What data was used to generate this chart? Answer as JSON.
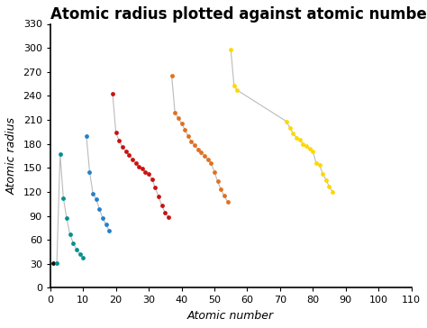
{
  "title": "Atomic radius plotted against atomic number",
  "xlabel": "Atomic number",
  "ylabel": "Atomic radius",
  "xlim": [
    0,
    110
  ],
  "ylim": [
    0,
    330
  ],
  "xticks": [
    0,
    10,
    20,
    30,
    40,
    50,
    60,
    70,
    80,
    90,
    100,
    110
  ],
  "yticks": [
    0,
    30,
    60,
    90,
    120,
    150,
    180,
    210,
    240,
    270,
    300,
    330
  ],
  "periods": [
    {
      "color": "#111111",
      "atomic_numbers": [
        1
      ],
      "radii": [
        31
      ]
    },
    {
      "color": "#009090",
      "atomic_numbers": [
        2,
        3,
        4,
        5,
        6,
        7,
        8,
        9,
        10
      ],
      "radii": [
        31,
        167,
        112,
        87,
        67,
        56,
        48,
        42,
        38
      ]
    },
    {
      "color": "#2080CC",
      "atomic_numbers": [
        11,
        12,
        13,
        14,
        15,
        16,
        17,
        18
      ],
      "radii": [
        190,
        145,
        118,
        111,
        98,
        87,
        79,
        71
      ]
    },
    {
      "color": "#CC1010",
      "atomic_numbers": [
        19,
        20,
        21,
        22,
        23,
        24,
        25,
        26,
        27,
        28,
        29,
        30,
        31,
        32,
        33,
        34,
        35,
        36
      ],
      "radii": [
        243,
        194,
        184,
        176,
        171,
        166,
        161,
        156,
        152,
        149,
        145,
        142,
        136,
        125,
        114,
        103,
        94,
        88
      ]
    },
    {
      "color": "#E07020",
      "atomic_numbers": [
        37,
        38,
        39,
        40,
        41,
        42,
        43,
        44,
        45,
        46,
        47,
        48,
        49,
        50,
        51,
        52,
        53,
        54
      ],
      "radii": [
        265,
        219,
        212,
        206,
        198,
        190,
        183,
        178,
        173,
        169,
        165,
        161,
        156,
        145,
        133,
        123,
        115,
        108
      ]
    },
    {
      "color": "#FFD700",
      "atomic_numbers": [
        55,
        56,
        57,
        72,
        73,
        74,
        75,
        76,
        77,
        78,
        79,
        80,
        81,
        82,
        83,
        84,
        85,
        86
      ],
      "radii": [
        298,
        253,
        247,
        208,
        200,
        193,
        188,
        185,
        180,
        177,
        174,
        171,
        156,
        154,
        143,
        135,
        127,
        120
      ]
    }
  ],
  "dot_size": 12,
  "line_color": "#bbbbbb",
  "line_width": 0.8,
  "title_fontsize": 12,
  "label_fontsize": 9,
  "tick_fontsize": 8,
  "fig_width": 4.74,
  "fig_height": 3.64,
  "dpi": 100
}
